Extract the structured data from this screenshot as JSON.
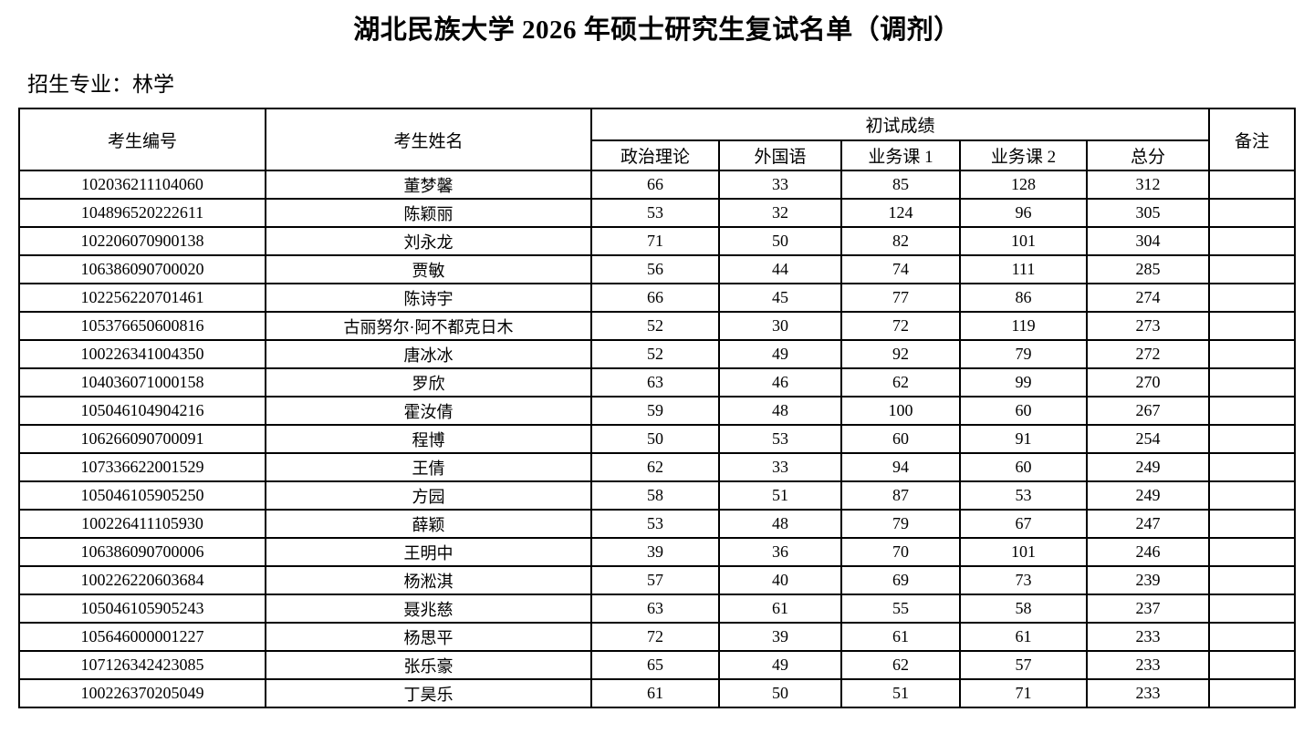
{
  "page": {
    "title": "湖北民族大学 2026 年硕士研究生复试名单（调剂）",
    "major_line": "招生专业：林学"
  },
  "table": {
    "header": {
      "candidate_id": "考生编号",
      "candidate_name": "考生姓名",
      "initial_score_group": "初试成绩",
      "political_theory": "政治理论",
      "foreign_language": "外国语",
      "major_course_1": "业务课 1",
      "major_course_2": "业务课 2",
      "total_score": "总分",
      "remarks": "备注"
    },
    "rows": [
      {
        "id": "102036211104060",
        "name": "董梦馨",
        "political": "66",
        "foreign": "33",
        "course1": "85",
        "course2": "128",
        "total": "312",
        "remark": ""
      },
      {
        "id": "104896520222611",
        "name": "陈颖丽",
        "political": "53",
        "foreign": "32",
        "course1": "124",
        "course2": "96",
        "total": "305",
        "remark": ""
      },
      {
        "id": "102206070900138",
        "name": "刘永龙",
        "political": "71",
        "foreign": "50",
        "course1": "82",
        "course2": "101",
        "total": "304",
        "remark": ""
      },
      {
        "id": "106386090700020",
        "name": "贾敏",
        "political": "56",
        "foreign": "44",
        "course1": "74",
        "course2": "111",
        "total": "285",
        "remark": ""
      },
      {
        "id": "102256220701461",
        "name": "陈诗宇",
        "political": "66",
        "foreign": "45",
        "course1": "77",
        "course2": "86",
        "total": "274",
        "remark": ""
      },
      {
        "id": "105376650600816",
        "name": "古丽努尔·阿不都克日木",
        "political": "52",
        "foreign": "30",
        "course1": "72",
        "course2": "119",
        "total": "273",
        "remark": ""
      },
      {
        "id": "100226341004350",
        "name": "唐冰冰",
        "political": "52",
        "foreign": "49",
        "course1": "92",
        "course2": "79",
        "total": "272",
        "remark": ""
      },
      {
        "id": "104036071000158",
        "name": "罗欣",
        "political": "63",
        "foreign": "46",
        "course1": "62",
        "course2": "99",
        "total": "270",
        "remark": ""
      },
      {
        "id": "105046104904216",
        "name": "霍汝倩",
        "political": "59",
        "foreign": "48",
        "course1": "100",
        "course2": "60",
        "total": "267",
        "remark": ""
      },
      {
        "id": "106266090700091",
        "name": "程博",
        "political": "50",
        "foreign": "53",
        "course1": "60",
        "course2": "91",
        "total": "254",
        "remark": ""
      },
      {
        "id": "107336622001529",
        "name": "王倩",
        "political": "62",
        "foreign": "33",
        "course1": "94",
        "course2": "60",
        "total": "249",
        "remark": ""
      },
      {
        "id": "105046105905250",
        "name": "方园",
        "political": "58",
        "foreign": "51",
        "course1": "87",
        "course2": "53",
        "total": "249",
        "remark": ""
      },
      {
        "id": "100226411105930",
        "name": "薛颖",
        "political": "53",
        "foreign": "48",
        "course1": "79",
        "course2": "67",
        "total": "247",
        "remark": ""
      },
      {
        "id": "106386090700006",
        "name": "王明中",
        "political": "39",
        "foreign": "36",
        "course1": "70",
        "course2": "101",
        "total": "246",
        "remark": ""
      },
      {
        "id": "100226220603684",
        "name": "杨淞淇",
        "political": "57",
        "foreign": "40",
        "course1": "69",
        "course2": "73",
        "total": "239",
        "remark": ""
      },
      {
        "id": "105046105905243",
        "name": "聂兆慈",
        "political": "63",
        "foreign": "61",
        "course1": "55",
        "course2": "58",
        "total": "237",
        "remark": ""
      },
      {
        "id": "105646000001227",
        "name": "杨思平",
        "political": "72",
        "foreign": "39",
        "course1": "61",
        "course2": "61",
        "total": "233",
        "remark": ""
      },
      {
        "id": "107126342423085",
        "name": "张乐豪",
        "political": "65",
        "foreign": "49",
        "course1": "62",
        "course2": "57",
        "total": "233",
        "remark": ""
      },
      {
        "id": "100226370205049",
        "name": "丁昊乐",
        "political": "61",
        "foreign": "50",
        "course1": "51",
        "course2": "71",
        "total": "233",
        "remark": ""
      }
    ]
  }
}
